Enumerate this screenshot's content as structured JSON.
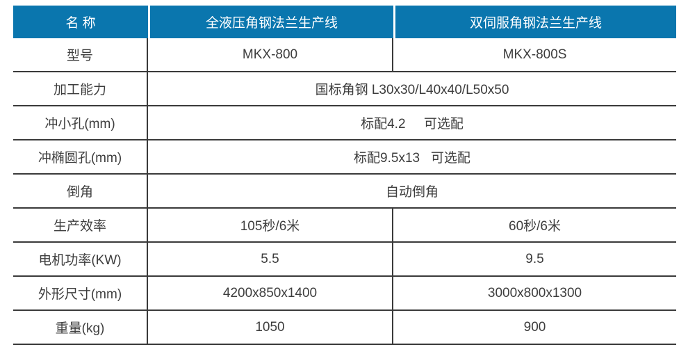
{
  "table": {
    "header": [
      "名 称",
      "全液压角钢法兰生产线",
      "双伺服角钢法兰生产线"
    ],
    "rows": [
      {
        "label": "型号",
        "values": [
          "MKX-800",
          "MKX-800S"
        ]
      },
      {
        "label": "加工能力",
        "values": [
          "国标角钢 L30x30/L40x40/L50x50"
        ]
      },
      {
        "label": "冲小孔(mm)",
        "values": [
          "标配4.2     可选配"
        ]
      },
      {
        "label": "冲椭圆孔(mm)",
        "values": [
          "标配9.5x13   可选配"
        ]
      },
      {
        "label": "倒角",
        "values": [
          "自动倒角"
        ]
      },
      {
        "label": "生产效率",
        "values": [
          "105秒/6米",
          "60秒/6米"
        ]
      },
      {
        "label": "电机功率(KW)",
        "values": [
          "5.5",
          "9.5"
        ]
      },
      {
        "label": "外形尺寸(mm)",
        "values": [
          "4200x850x1400",
          "3000x800x1300"
        ]
      },
      {
        "label": "重量(kg)",
        "values": [
          "1050",
          "900"
        ]
      }
    ],
    "colors": {
      "header_bg": "#0a76ae",
      "header_text": "#ffffff",
      "grid_line": "#3a3a3a",
      "body_text": "#3d3d3d"
    }
  }
}
